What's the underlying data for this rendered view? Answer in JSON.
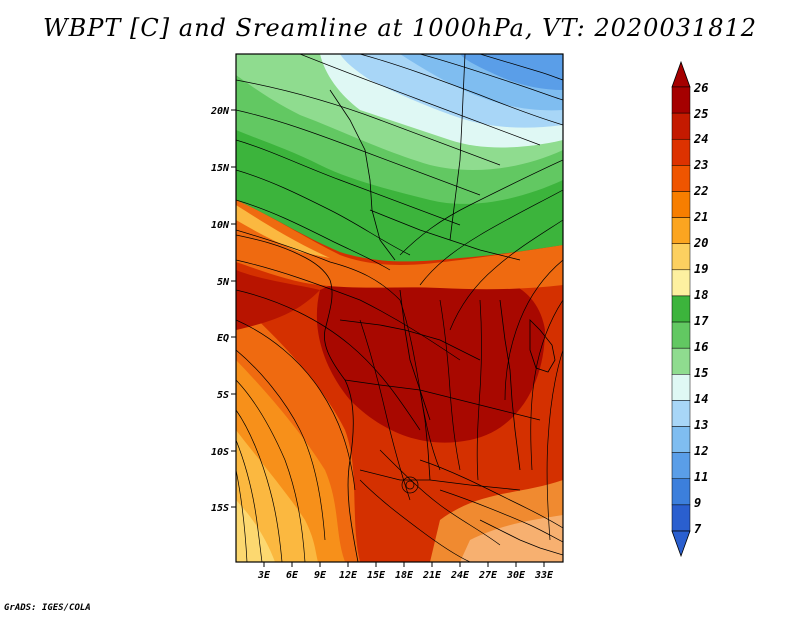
{
  "title": "WBPT [C] and Sreamline at 1000hPa, VT: 2020031812",
  "credit": "GrADS: IGES/COLA",
  "map": {
    "lon_range": [
      0,
      35
    ],
    "lat_range": [
      -20,
      25
    ],
    "lat_ticks": [
      "20N",
      "15N",
      "10N",
      "5N",
      "EQ",
      "5S",
      "10S",
      "15S"
    ],
    "lat_values": [
      20,
      15,
      10,
      5,
      0,
      -5,
      -10,
      -15
    ],
    "lon_ticks": [
      "3E",
      "6E",
      "9E",
      "12E",
      "15E",
      "18E",
      "21E",
      "24E",
      "27E",
      "30E",
      "33E"
    ],
    "lon_values": [
      3,
      6,
      9,
      12,
      15,
      18,
      21,
      24,
      27,
      30,
      33
    ]
  },
  "colorbar": {
    "labels": [
      "26",
      "25",
      "24",
      "23",
      "22",
      "21",
      "20",
      "19",
      "18",
      "17",
      "16",
      "15",
      "14",
      "13",
      "12",
      "11",
      "9",
      "7"
    ],
    "colors": [
      "#a50000",
      "#c41a00",
      "#dd3200",
      "#ef5500",
      "#f77e00",
      "#fba520",
      "#fcd060",
      "#fdf0a0",
      "#3cb43c",
      "#62c862",
      "#8fdc8f",
      "#dff8f4",
      "#a8d6f7",
      "#7fbdf0",
      "#5a9ee8",
      "#3c7fdc",
      "#2a5fcf"
    ]
  }
}
